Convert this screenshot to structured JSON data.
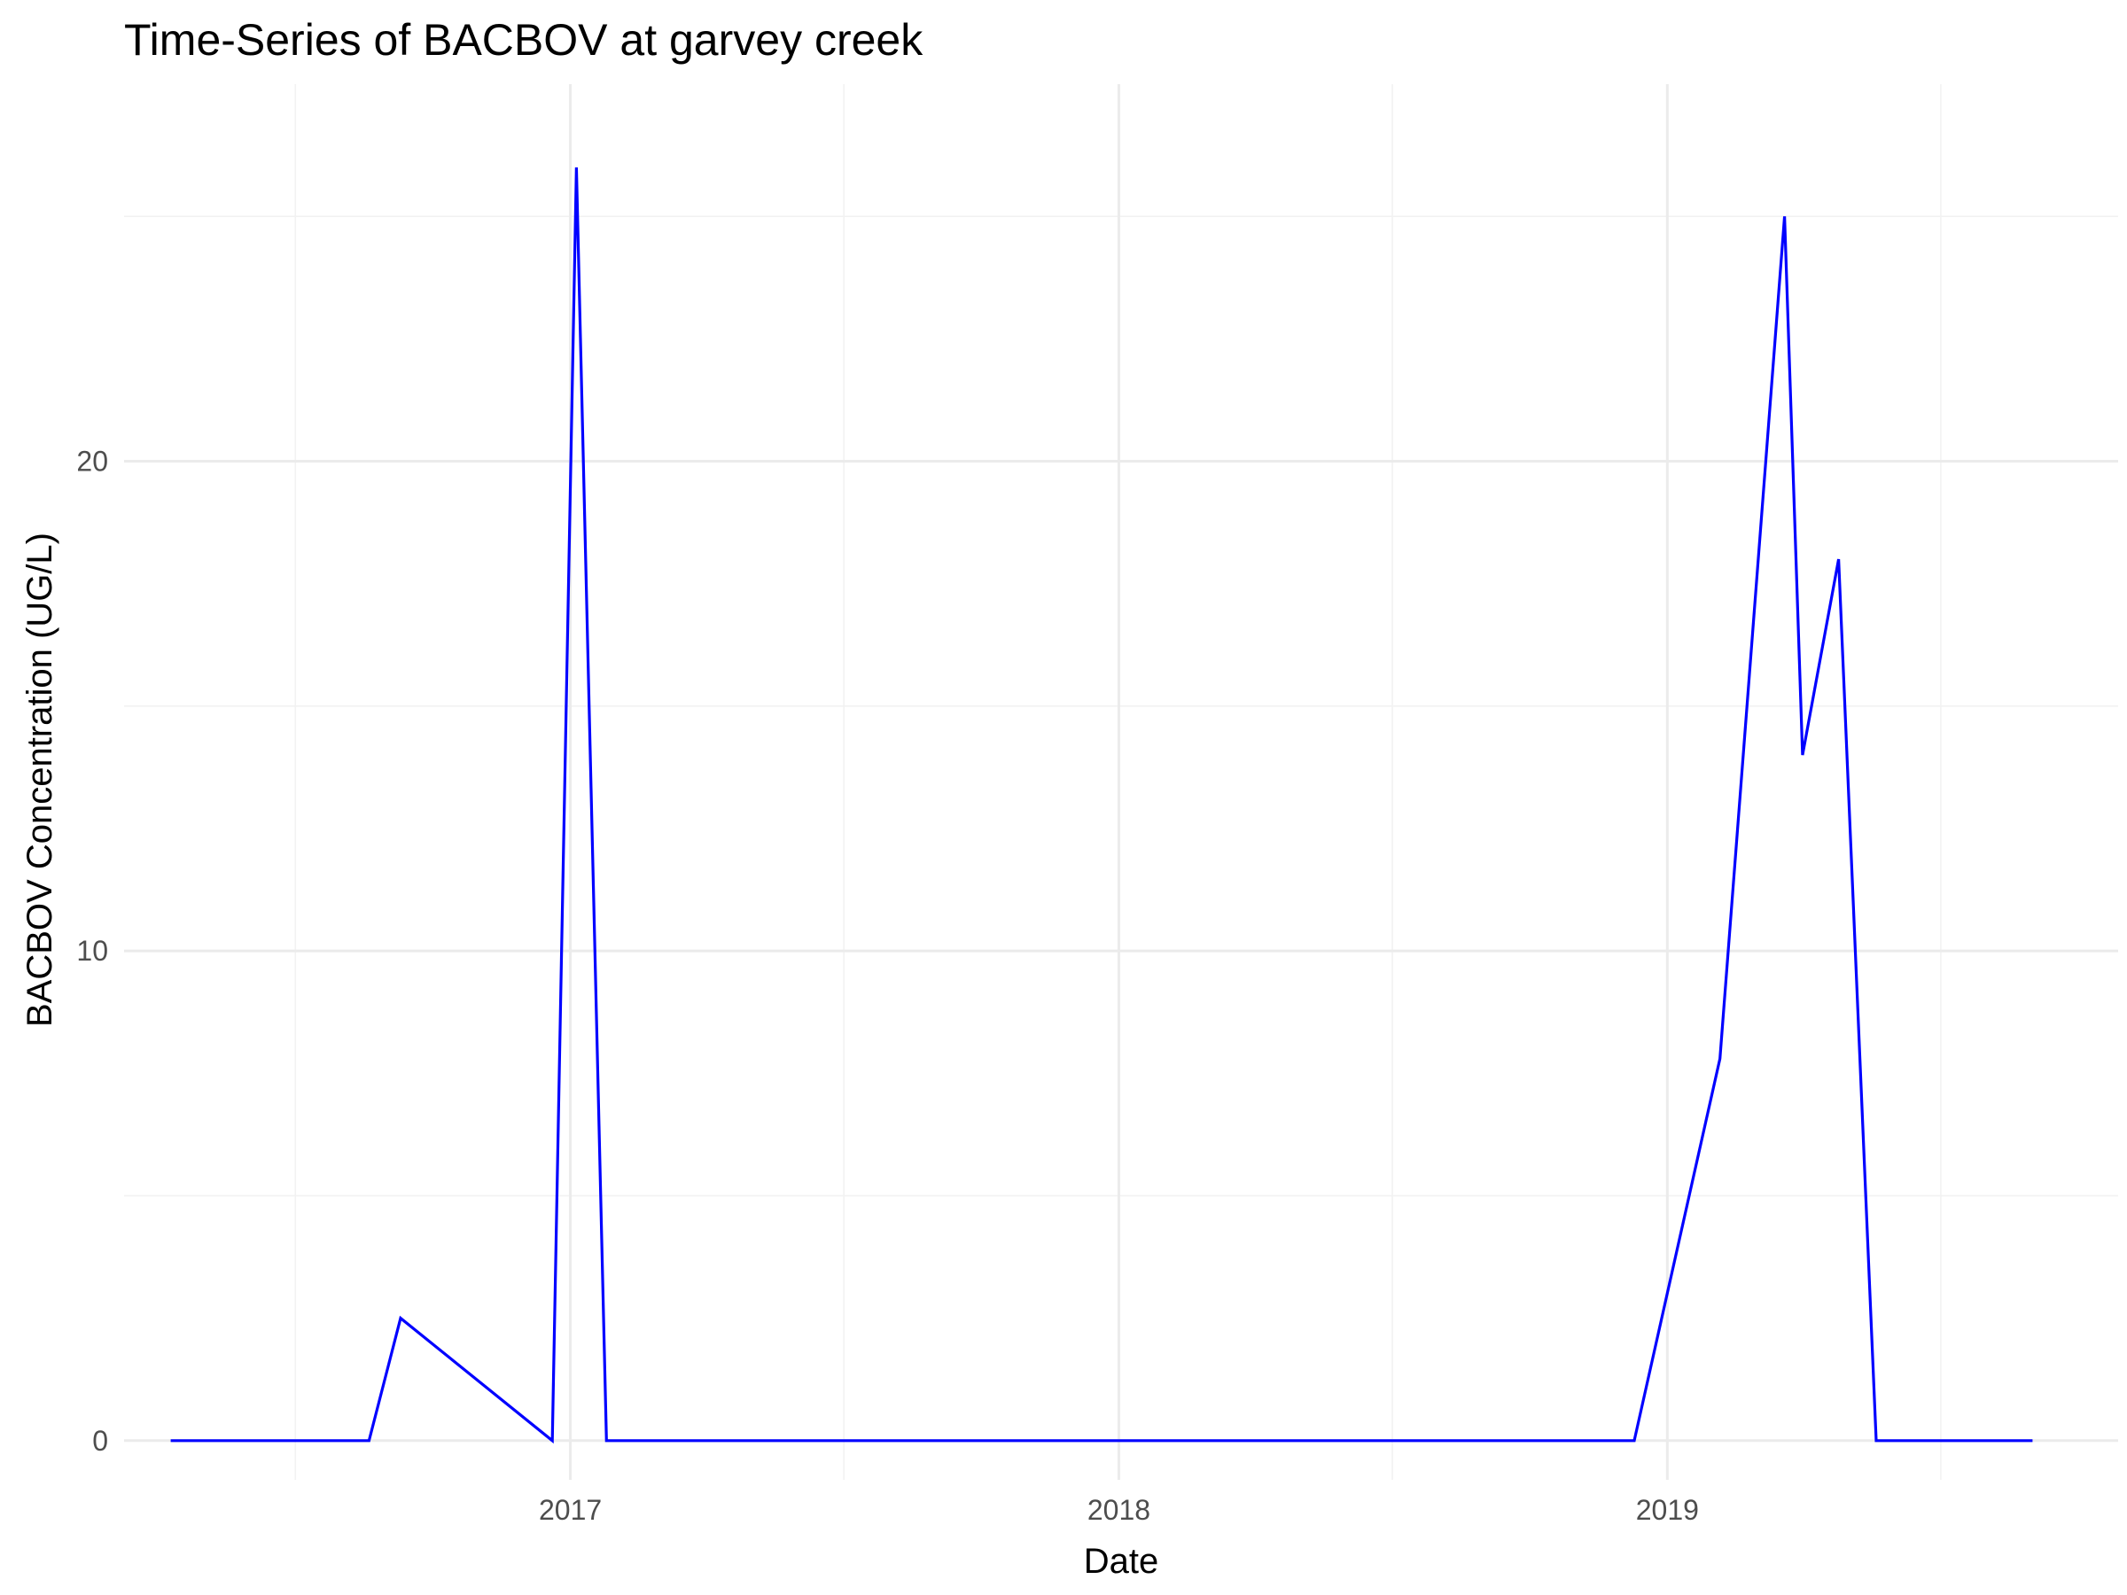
{
  "chart_data": {
    "type": "line",
    "title": "Time-Series of BACBOV at garvey creek",
    "xlabel": "Date",
    "ylabel": "BACBOV Concentration (UG/L)",
    "x_ticks": [
      {
        "date": "2017-01-01",
        "label": "2017"
      },
      {
        "date": "2018-01-01",
        "label": "2018"
      },
      {
        "date": "2019-01-01",
        "label": "2019"
      }
    ],
    "x_minor_ticks": [
      "2016-07-02",
      "2017-07-02",
      "2018-07-02",
      "2019-07-02"
    ],
    "y_ticks": [
      0,
      10,
      20
    ],
    "y_minor_ticks": [
      5,
      15,
      25
    ],
    "xlim": [
      "2016-03-10",
      "2019-10-28"
    ],
    "ylim": [
      -0.8,
      27.7
    ],
    "grid": true,
    "series": [
      {
        "color": "#0000ff",
        "x": [
          "2016-04-10",
          "2016-08-20",
          "2016-09-10",
          "2016-12-20",
          "2017-01-05",
          "2017-01-25",
          "2018-12-10",
          "2019-02-05",
          "2019-03-20",
          "2019-04-01",
          "2019-04-25",
          "2019-05-20",
          "2019-09-01"
        ],
        "y": [
          0,
          0,
          2.5,
          0,
          26.0,
          0,
          0,
          7.8,
          25.0,
          14.0,
          18.0,
          0,
          0
        ]
      }
    ]
  }
}
